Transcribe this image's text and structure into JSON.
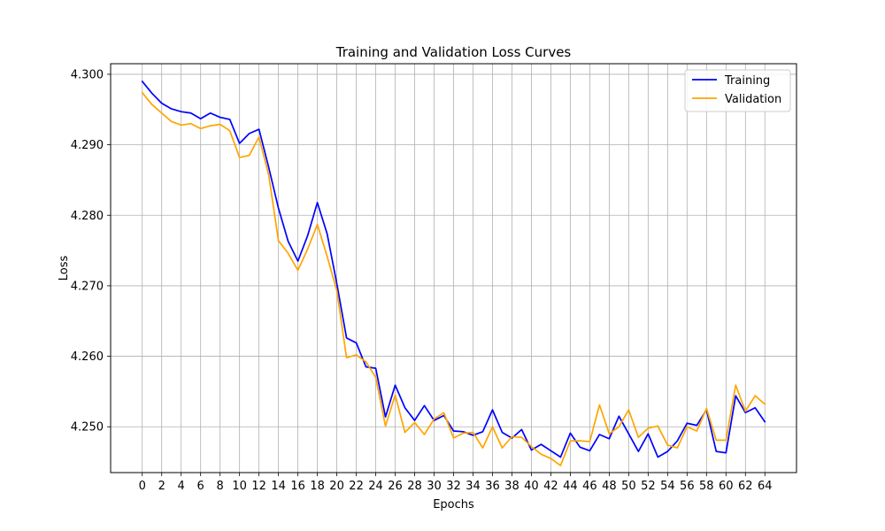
{
  "chart_data": {
    "type": "line",
    "title": "Training and Validation Loss Curves",
    "xlabel": "Epochs",
    "ylabel": "Loss",
    "xlim": [
      -3.25,
      67.25
    ],
    "ylim": [
      4.2435,
      4.3015
    ],
    "grid": true,
    "legend_position": "top-right",
    "x_ticks": [
      0,
      2,
      4,
      6,
      8,
      10,
      12,
      14,
      16,
      18,
      20,
      22,
      24,
      26,
      28,
      30,
      32,
      34,
      36,
      38,
      40,
      42,
      44,
      46,
      48,
      50,
      52,
      54,
      56,
      58,
      60,
      62,
      64
    ],
    "y_ticks": [
      4.25,
      4.26,
      4.27,
      4.28,
      4.29,
      4.3
    ],
    "y_tick_labels": [
      "4.250",
      "4.260",
      "4.270",
      "4.280",
      "4.290",
      "4.300"
    ],
    "x": [
      0,
      1,
      2,
      3,
      4,
      5,
      6,
      7,
      8,
      9,
      10,
      11,
      12,
      13,
      14,
      15,
      16,
      17,
      18,
      19,
      20,
      21,
      22,
      23,
      24,
      25,
      26,
      27,
      28,
      29,
      30,
      31,
      32,
      33,
      34,
      35,
      36,
      37,
      38,
      39,
      40,
      41,
      42,
      43,
      44,
      45,
      46,
      47,
      48,
      49,
      50,
      51,
      52,
      53,
      54,
      55,
      56,
      57,
      58,
      59,
      60,
      61,
      62,
      63,
      64
    ],
    "series": [
      {
        "name": "Training",
        "color": "#0000ff",
        "values": [
          4.299,
          4.2973,
          4.2959,
          4.2951,
          4.2947,
          4.2945,
          4.2937,
          4.2945,
          4.2939,
          4.2936,
          4.2902,
          4.2916,
          4.2922,
          4.2868,
          4.281,
          4.2763,
          4.2735,
          4.2771,
          4.2818,
          4.2774,
          4.2703,
          4.2626,
          4.2619,
          4.2585,
          4.2583,
          4.2514,
          4.2559,
          4.2527,
          4.2509,
          4.253,
          4.2509,
          4.2516,
          4.2494,
          4.2493,
          4.2488,
          4.2493,
          4.2524,
          4.2492,
          4.2484,
          4.2496,
          4.2467,
          4.2475,
          4.2466,
          4.2457,
          4.2491,
          4.2471,
          4.2466,
          4.2489,
          4.2483,
          4.2515,
          4.249,
          4.2465,
          4.249,
          4.2457,
          4.2465,
          4.248,
          4.2505,
          4.2502,
          4.2524,
          4.2465,
          4.2463,
          4.2544,
          4.252,
          4.2527,
          4.2507
        ]
      },
      {
        "name": "Validation",
        "color": "#ffa500",
        "values": [
          4.2974,
          4.2957,
          4.2945,
          4.2933,
          4.2928,
          4.293,
          4.2923,
          4.2927,
          4.2929,
          4.292,
          4.2882,
          4.2885,
          4.2911,
          4.2857,
          4.2764,
          4.2746,
          4.2722,
          4.2752,
          4.2787,
          4.2742,
          4.2693,
          4.2598,
          4.2602,
          4.2592,
          4.257,
          4.2501,
          4.2545,
          4.2492,
          4.2506,
          4.2489,
          4.2511,
          4.252,
          4.2484,
          4.2491,
          4.2492,
          4.247,
          4.25,
          4.247,
          4.2486,
          4.2485,
          4.2472,
          4.2461,
          4.2455,
          4.2445,
          4.248,
          4.248,
          4.2479,
          4.2531,
          4.249,
          4.25,
          4.2524,
          4.2485,
          4.2498,
          4.2501,
          4.2474,
          4.247,
          4.25,
          4.2494,
          4.2526,
          4.2481,
          4.2481,
          4.2559,
          4.2522,
          4.2544,
          4.2532
        ]
      }
    ]
  }
}
